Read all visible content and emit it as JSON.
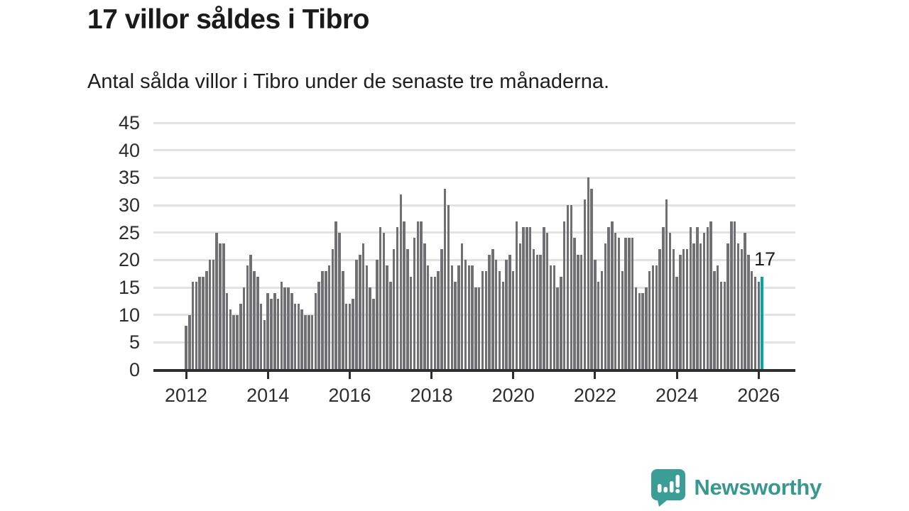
{
  "header": {
    "title": "17 villor såldes i Tibro",
    "subtitle": "Antal sålda villor i Tibro under de senaste tre månaderna."
  },
  "chart_data": {
    "type": "bar",
    "title": "17 villor såldes i Tibro",
    "x_start": "2012-01",
    "x_end": "2026-02",
    "x_unit": "month",
    "values": [
      8,
      10,
      16,
      16,
      17,
      17,
      18,
      20,
      20,
      25,
      23,
      23,
      14,
      11,
      10,
      10,
      12,
      15,
      19,
      21,
      18,
      17,
      12,
      9,
      14,
      13,
      14,
      13,
      16,
      15,
      15,
      14,
      12,
      12,
      11,
      10,
      10,
      10,
      14,
      16,
      18,
      18,
      19,
      22,
      27,
      25,
      18,
      12,
      12,
      13,
      20,
      21,
      23,
      19,
      15,
      13,
      20,
      26,
      25,
      19,
      16,
      22,
      26,
      32,
      27,
      22,
      17,
      24,
      27,
      27,
      23,
      19,
      17,
      17,
      18,
      22,
      33,
      30,
      19,
      16,
      19,
      23,
      20,
      19,
      19,
      15,
      15,
      18,
      18,
      21,
      22,
      20,
      18,
      16,
      20,
      21,
      18,
      27,
      23,
      26,
      26,
      26,
      22,
      21,
      21,
      26,
      25,
      19,
      19,
      15,
      17,
      27,
      30,
      30,
      24,
      21,
      21,
      31,
      35,
      33,
      20,
      16,
      18,
      23,
      26,
      27,
      25,
      24,
      18,
      24,
      24,
      24,
      15,
      14,
      14,
      15,
      18,
      19,
      19,
      22,
      26,
      31,
      25,
      22,
      17,
      21,
      22,
      22,
      26,
      23,
      26,
      23,
      25,
      26,
      27,
      18,
      19,
      16,
      16,
      23,
      27,
      27,
      23,
      22,
      25,
      21,
      18,
      17,
      16,
      17
    ],
    "ylim": [
      0,
      45
    ],
    "yticks": [
      0,
      5,
      10,
      15,
      20,
      25,
      30,
      35,
      40,
      45
    ],
    "xticks": [
      2012,
      2014,
      2016,
      2018,
      2020,
      2022,
      2024,
      2026
    ],
    "grid": true,
    "legend": "none",
    "bar_color": "#6f6f74",
    "highlight_color": "#00a7a3",
    "highlight_index": 169,
    "annotation": {
      "text": "17",
      "value": 17
    }
  },
  "footer": {
    "logo_text": "Newsworthy",
    "logo_color": "#38988f",
    "logo_icon": "chart-speech-bubble"
  }
}
